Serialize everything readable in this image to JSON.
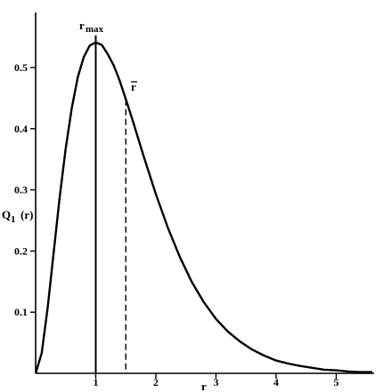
{
  "chart_data": {
    "type": "line",
    "title": "",
    "xlabel": "r",
    "ylabel": "Q",
    "ylabel_subscript": "1",
    "ylabel_suffix": "(r)",
    "xlim": [
      0,
      5.6
    ],
    "ylim": [
      0,
      0.55
    ],
    "grid": false,
    "x_ticks": [
      1,
      2,
      3,
      4,
      5
    ],
    "y_ticks": [
      0.1,
      0.2,
      0.3,
      0.4,
      0.5
    ],
    "series": [
      {
        "function": "4 r^2 exp(-2r)",
        "x": [
          0,
          0.1,
          0.2,
          0.3,
          0.4,
          0.5,
          0.6,
          0.7,
          0.8,
          0.9,
          1.0,
          1.1,
          1.2,
          1.3,
          1.4,
          1.5,
          1.6,
          1.8,
          2.0,
          2.2,
          2.4,
          2.6,
          2.8,
          3.0,
          3.2,
          3.4,
          3.6,
          3.8,
          4.0,
          4.2,
          4.4,
          4.6,
          4.8,
          5.0,
          5.2,
          5.4,
          5.6
        ],
        "y": [
          0.0,
          0.033,
          0.107,
          0.198,
          0.288,
          0.368,
          0.433,
          0.484,
          0.517,
          0.536,
          0.541,
          0.537,
          0.522,
          0.503,
          0.478,
          0.448,
          0.418,
          0.354,
          0.293,
          0.238,
          0.19,
          0.149,
          0.116,
          0.089,
          0.068,
          0.052,
          0.039,
          0.029,
          0.021,
          0.016,
          0.012,
          0.009,
          0.006,
          0.005,
          0.003,
          0.002,
          0.002
        ]
      }
    ],
    "annotations": [
      {
        "label": "r",
        "label_subscript": "max",
        "x": 1.0,
        "y": 0.541,
        "style": "solid-vertical"
      },
      {
        "label": "r",
        "overline": true,
        "x": 1.5,
        "y": 0.448,
        "style": "dashed-vertical"
      }
    ]
  }
}
